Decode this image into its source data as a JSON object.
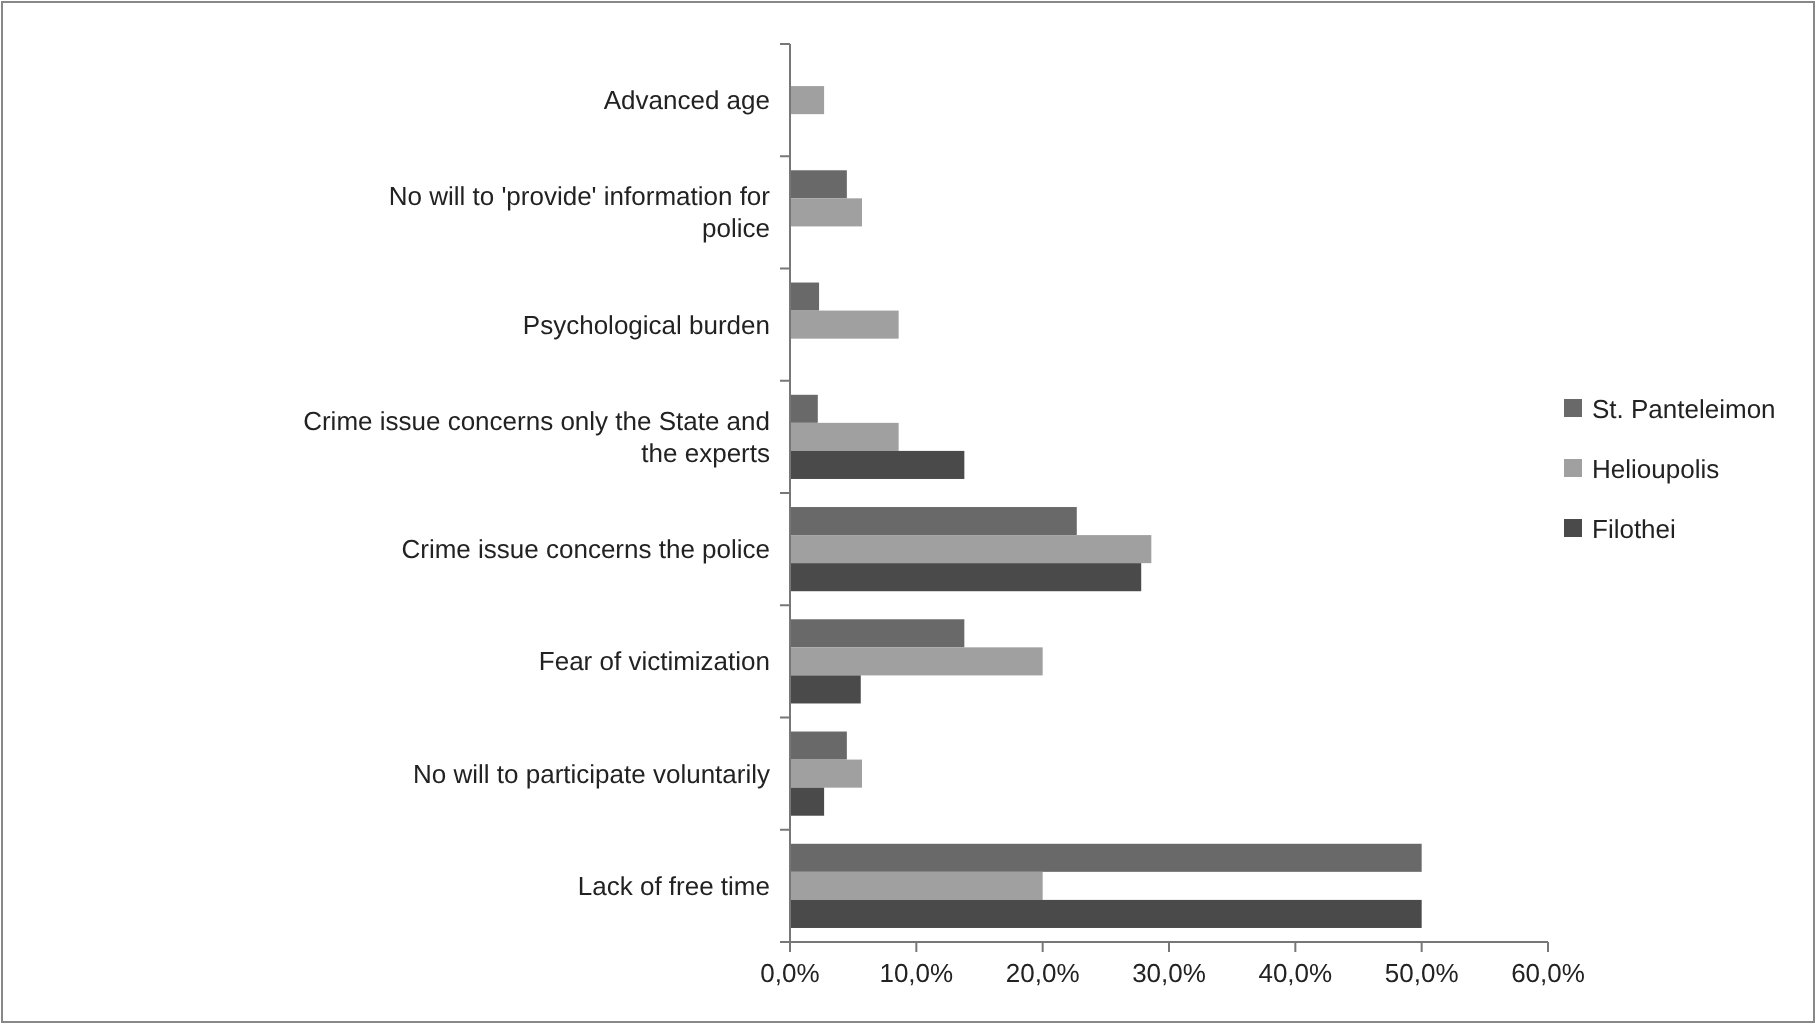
{
  "chart_data": {
    "type": "bar",
    "orientation": "horizontal",
    "categories": [
      "Advanced age",
      "No will to 'provide' information for police",
      "Psychological burden",
      "Crime issue concerns only the State and the experts",
      "Crime issue concerns the police",
      "Fear of victimization",
      "No will to participate voluntarily",
      "Lack of free time"
    ],
    "series": [
      {
        "name": "St. Panteleimon",
        "color": "#696969",
        "values": [
          null,
          4.5,
          2.3,
          2.2,
          22.7,
          13.8,
          4.5,
          50
        ]
      },
      {
        "name": "Helioupolis",
        "color": "#a0a0a0",
        "values": [
          2.7,
          5.7,
          8.6,
          8.6,
          28.6,
          20.0,
          5.7,
          20
        ]
      },
      {
        "name": "Filothei",
        "color": "#4a4a4a",
        "values": [
          null,
          null,
          null,
          13.8,
          27.8,
          5.6,
          2.7,
          50
        ]
      }
    ],
    "xlim": [
      0,
      60
    ],
    "xticks": [
      {
        "value": 0,
        "label": "0,0%"
      },
      {
        "value": 10,
        "label": "10,0%"
      },
      {
        "value": 20,
        "label": "20,0%"
      },
      {
        "value": 30,
        "label": "30,0%"
      },
      {
        "value": 40,
        "label": "40,0%"
      },
      {
        "value": 50,
        "label": "50,0%"
      },
      {
        "value": 60,
        "label": "60,0%"
      }
    ],
    "grid": false,
    "legend": "right"
  }
}
